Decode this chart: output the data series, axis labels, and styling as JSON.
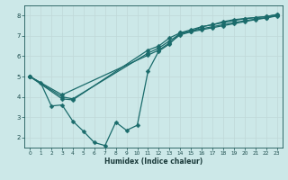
{
  "title": "",
  "xlabel": "Humidex (Indice chaleur)",
  "ylabel": "",
  "bg_color": "#cce8e8",
  "line_color": "#1a6b6b",
  "grid_color": "#c0d8d8",
  "xlim": [
    -0.5,
    23.5
  ],
  "ylim": [
    1.5,
    8.5
  ],
  "xticks": [
    0,
    1,
    2,
    3,
    4,
    5,
    6,
    7,
    8,
    9,
    10,
    11,
    12,
    13,
    14,
    15,
    16,
    17,
    18,
    19,
    20,
    21,
    22,
    23
  ],
  "yticks": [
    2,
    3,
    4,
    5,
    6,
    7,
    8
  ],
  "series1_x": [
    0,
    1,
    2,
    3,
    4,
    5,
    6,
    7,
    8,
    9,
    10,
    11,
    12,
    13,
    14,
    15,
    16,
    17,
    18,
    19,
    20,
    21,
    22,
    23
  ],
  "series1_y": [
    5.0,
    4.7,
    3.55,
    3.6,
    2.8,
    2.3,
    1.75,
    1.6,
    2.75,
    2.35,
    2.6,
    5.25,
    6.25,
    6.6,
    7.15,
    7.2,
    7.45,
    7.55,
    7.7,
    7.8,
    7.85,
    7.9,
    7.95,
    8.05
  ],
  "series2_x": [
    0,
    3,
    4,
    11,
    12,
    13,
    14,
    15,
    16,
    17,
    18,
    19,
    20,
    21,
    22,
    23
  ],
  "series2_y": [
    5.0,
    3.9,
    3.85,
    6.3,
    6.5,
    6.9,
    7.15,
    7.3,
    7.45,
    7.55,
    7.65,
    7.75,
    7.85,
    7.9,
    7.95,
    8.05
  ],
  "series3_x": [
    0,
    3,
    4,
    11,
    12,
    13,
    14,
    15,
    16,
    17,
    18,
    19,
    20,
    21,
    22,
    23
  ],
  "series3_y": [
    5.0,
    4.0,
    3.9,
    6.15,
    6.4,
    6.75,
    7.1,
    7.25,
    7.35,
    7.45,
    7.55,
    7.65,
    7.75,
    7.82,
    7.9,
    8.0
  ],
  "series4_x": [
    0,
    3,
    11,
    12,
    13,
    14,
    15,
    16,
    17,
    18,
    19,
    20,
    21,
    22,
    23
  ],
  "series4_y": [
    5.0,
    4.1,
    6.05,
    6.3,
    6.65,
    7.05,
    7.2,
    7.3,
    7.4,
    7.5,
    7.6,
    7.7,
    7.8,
    7.88,
    7.98
  ],
  "marker": "D",
  "markersize": 2.5,
  "linewidth": 0.9
}
